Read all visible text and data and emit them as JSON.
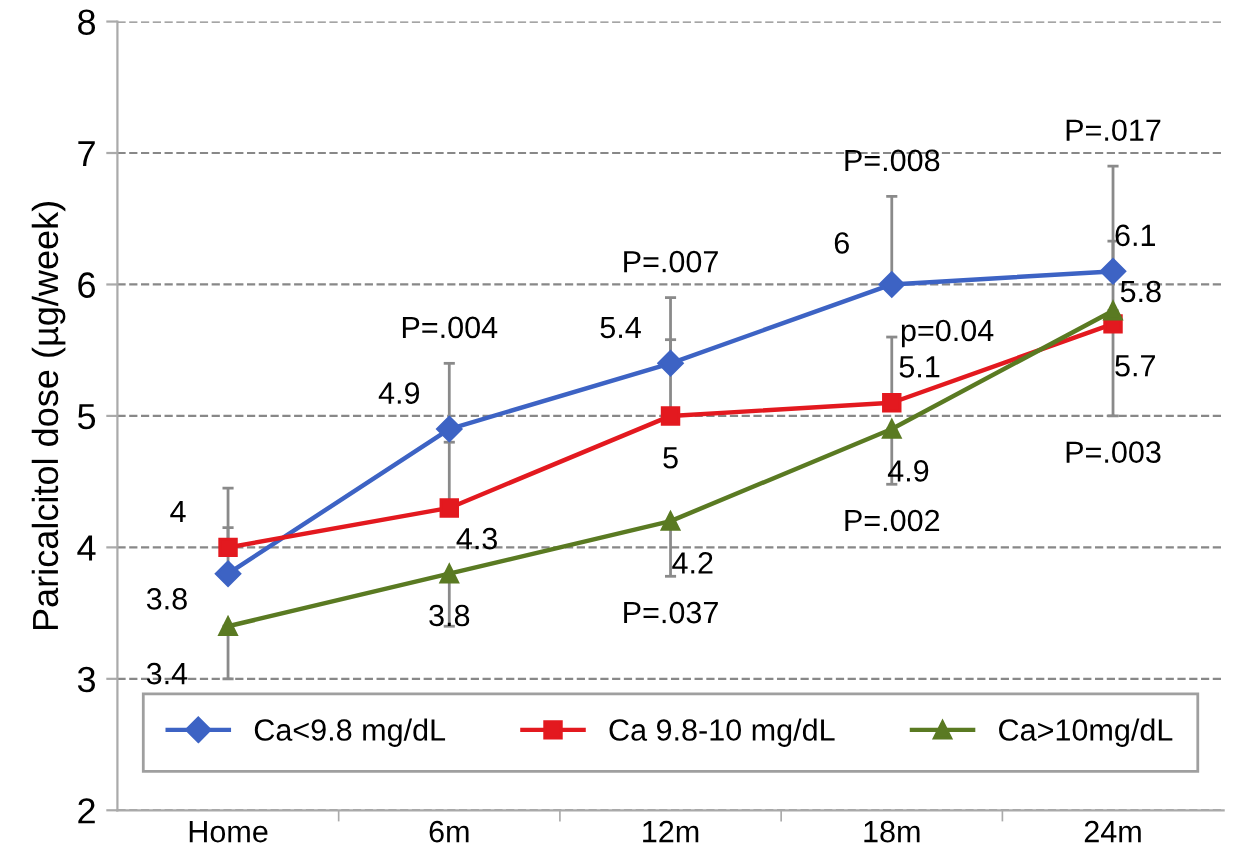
{
  "chart_data": {
    "type": "line",
    "ylabel": "Paricalcitol dose (µg/week)",
    "categories": [
      "Home",
      "6m",
      "12m",
      "18m",
      "24m"
    ],
    "ylim": [
      2,
      8
    ],
    "yticks": [
      2,
      3,
      4,
      5,
      6,
      7,
      8
    ],
    "grid": "y",
    "legend": "bottom",
    "data_labels": true,
    "series": [
      {
        "name": "Ca<9.8 mg/dL",
        "color": "#3d63c4",
        "marker": "diamond",
        "values": [
          3.8,
          4.9,
          5.4,
          6,
          6.1
        ],
        "errors": [
          [
            3.8,
            4.45
          ],
          [
            4.9,
            5.4
          ],
          [
            5.4,
            5.9
          ],
          [
            6,
            6.67
          ],
          [
            6.1,
            6.9
          ]
        ]
      },
      {
        "name": "Ca 9.8-10 mg/dL",
        "color": "#e3191f",
        "marker": "square",
        "values": [
          4,
          4.3,
          5,
          5.1,
          5.7
        ],
        "errors": [
          [
            4,
            4.15
          ],
          [
            4.3,
            4.8
          ],
          [
            5,
            5.58
          ],
          [
            5.1,
            5.6
          ],
          [
            5,
            5.7
          ]
        ]
      },
      {
        "name": "Ca>10mg/dL",
        "color": "#5a7a22",
        "marker": "triangle",
        "values": [
          3.4,
          3.8,
          4.2,
          4.9,
          5.8
        ],
        "errors": [
          [
            3,
            3.4
          ],
          [
            3.4,
            3.8
          ],
          [
            3.78,
            4.2
          ],
          [
            4.48,
            4.9
          ],
          [
            5.8,
            6.33
          ]
        ]
      }
    ],
    "annotations": [
      {
        "text": "P=.004",
        "x": "6m",
        "y": 5.4
      },
      {
        "text": "P=.007",
        "x": "12m",
        "y": 5.9
      },
      {
        "text": "P=.008",
        "x": "18m",
        "y": 6.67
      },
      {
        "text": "P=.017",
        "x": "24m",
        "y": 6.9
      },
      {
        "text": "P=.037",
        "x": "12m",
        "y": 3.78
      },
      {
        "text": "P=.002",
        "x": "18m",
        "y": 4.48
      },
      {
        "text": "P=.003",
        "x": "24m",
        "y": 5
      },
      "p=0.04"
    ]
  }
}
